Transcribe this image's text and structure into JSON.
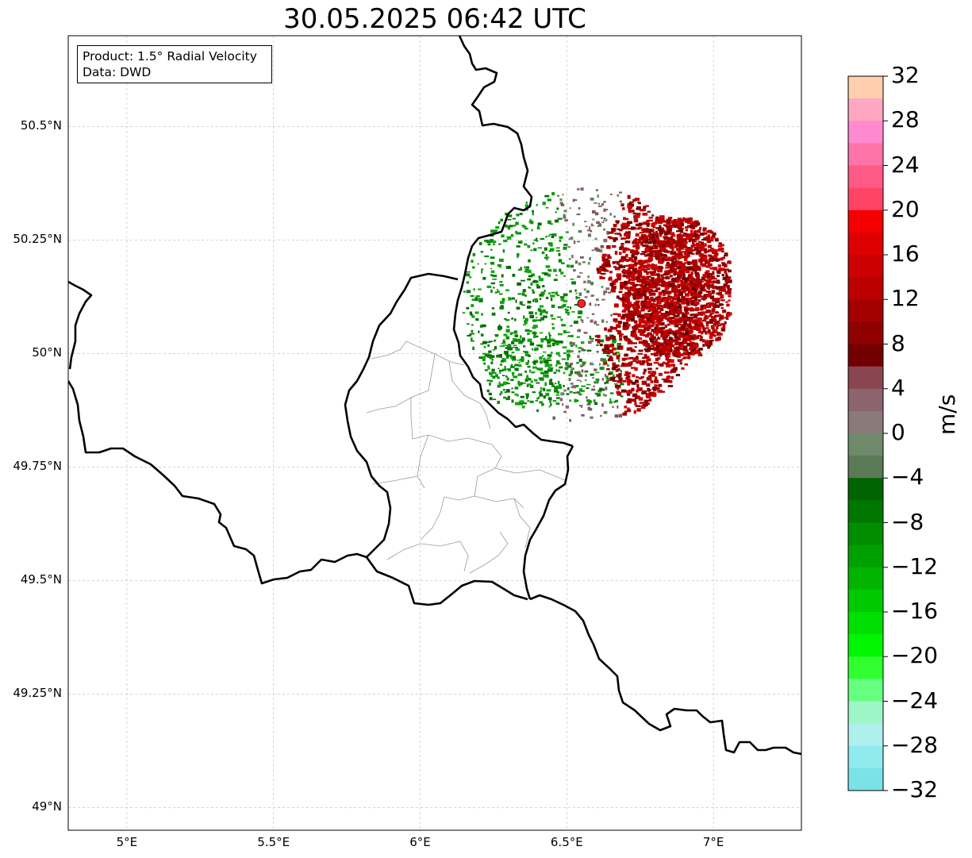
{
  "title": "30.05.2025 06:42 UTC",
  "info": {
    "product_line": "Product: 1.5° Radial Velocity",
    "data_line": "Data: DWD"
  },
  "map": {
    "lon_range": [
      4.8,
      7.3
    ],
    "lat_range": [
      48.95,
      50.7
    ],
    "lat_ticks": [
      {
        "value": 50.5,
        "label": "50.5°N"
      },
      {
        "value": 50.25,
        "label": "50.25°N"
      },
      {
        "value": 50.0,
        "label": "50°N"
      },
      {
        "value": 49.75,
        "label": "49.75°N"
      },
      {
        "value": 49.5,
        "label": "49.5°N"
      },
      {
        "value": 49.25,
        "label": "49.25°N"
      },
      {
        "value": 49.0,
        "label": "49°N"
      }
    ],
    "lon_ticks": [
      {
        "value": 5.0,
        "label": "5°E"
      },
      {
        "value": 5.5,
        "label": "5.5°E"
      },
      {
        "value": 6.0,
        "label": "6°E"
      },
      {
        "value": 6.5,
        "label": "6.5°E"
      },
      {
        "value": 7.0,
        "label": "7°E"
      }
    ],
    "gridlines": true,
    "radar_site": {
      "lon": 6.55,
      "lat": 50.11,
      "color": "#ff2020"
    },
    "colors": {
      "approaching_green": "#0a8f0a",
      "receding_red": "#c00000",
      "near_zero": "#7a5b60"
    }
  },
  "colorbar": {
    "label": "m/s",
    "vmin": -32,
    "vmax": 32,
    "ticks": [
      {
        "value": 32,
        "label": "32"
      },
      {
        "value": 28,
        "label": "28"
      },
      {
        "value": 24,
        "label": "24"
      },
      {
        "value": 20,
        "label": "20"
      },
      {
        "value": 16,
        "label": "16"
      },
      {
        "value": 12,
        "label": "12"
      },
      {
        "value": 8,
        "label": "8"
      },
      {
        "value": 4,
        "label": "4"
      },
      {
        "value": 0,
        "label": "0"
      },
      {
        "value": -4,
        "label": "−4"
      },
      {
        "value": -8,
        "label": "−8"
      },
      {
        "value": -12,
        "label": "−12"
      },
      {
        "value": -16,
        "label": "−16"
      },
      {
        "value": -20,
        "label": "−20"
      },
      {
        "value": -24,
        "label": "−24"
      },
      {
        "value": -28,
        "label": "−28"
      },
      {
        "value": -32,
        "label": "−32"
      }
    ],
    "colors_top_to_bottom": [
      "#ffcfae",
      "#ffa6c3",
      "#ff8ad0",
      "#ff74a8",
      "#ff5a86",
      "#ff4466",
      "#f40000",
      "#dd0000",
      "#cc0000",
      "#bb0000",
      "#a50000",
      "#8f0000",
      "#720000",
      "#8a4650",
      "#8b6470",
      "#8a7a78",
      "#6e8a6a",
      "#5a7a55",
      "#006400",
      "#007800",
      "#008d00",
      "#00a000",
      "#00b400",
      "#00c900",
      "#00df00",
      "#00f500",
      "#30ff30",
      "#66ff80",
      "#9ef5c8",
      "#aef0ee",
      "#90eaee",
      "#7be3e8"
    ]
  }
}
